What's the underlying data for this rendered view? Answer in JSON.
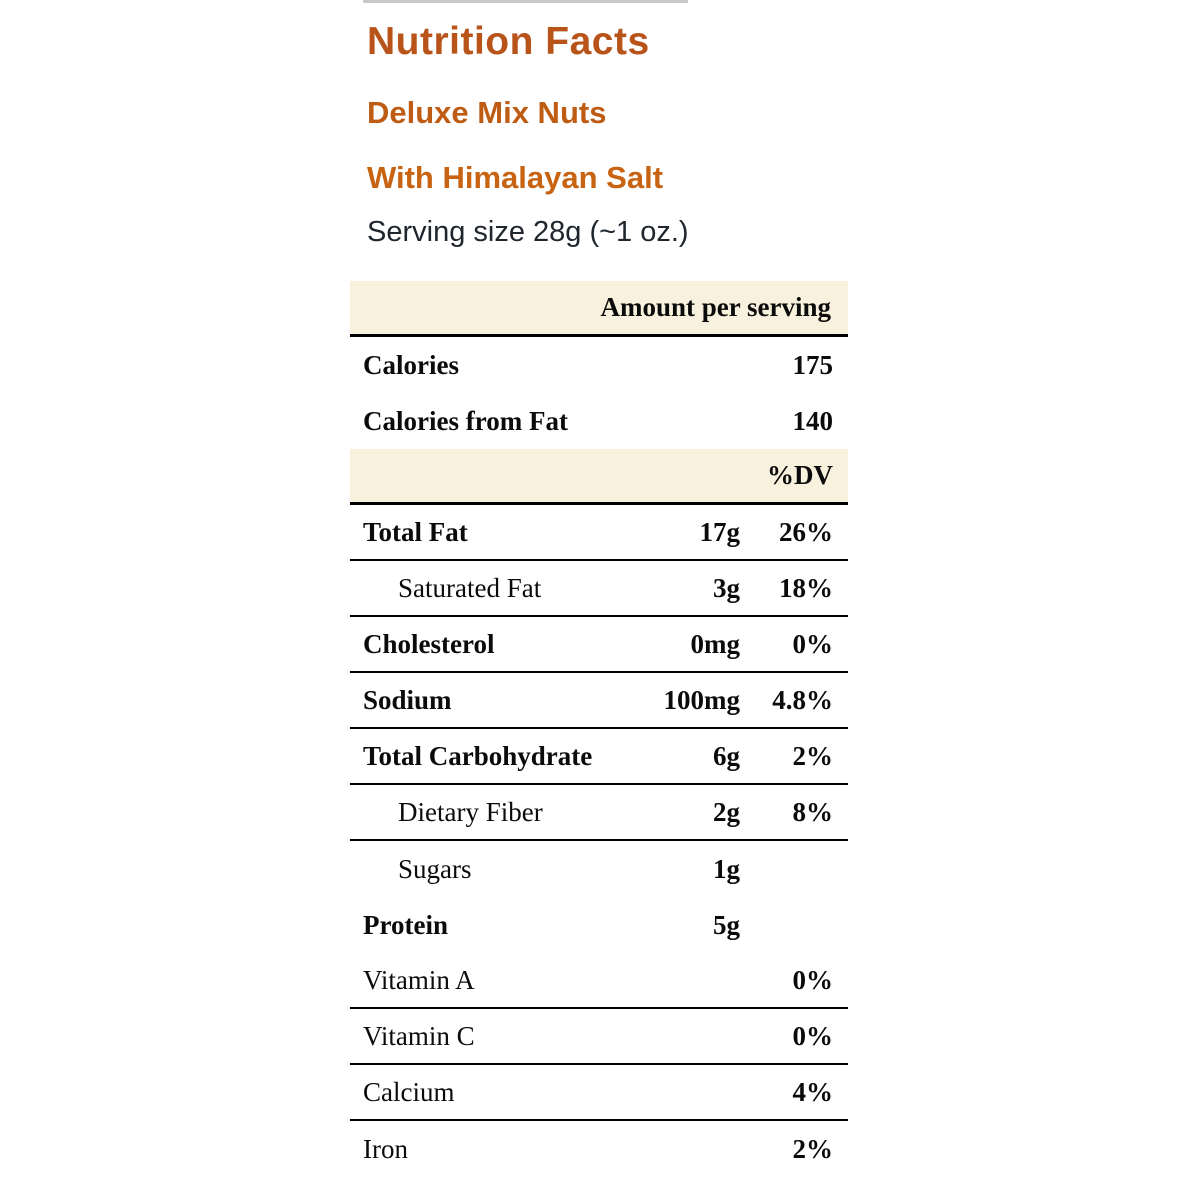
{
  "header": {
    "title": "Nutrition Facts",
    "product_name": "Deluxe Mix Nuts",
    "product_variant": "With Himalayan Salt",
    "serving_size": "Serving size 28g (~1 oz.)"
  },
  "colors": {
    "title_orange": "#b8541a",
    "subtitle_orange": "#c86312",
    "band_cream": "#f8f1dd",
    "serving_text": "#20262e",
    "rule_black": "#000000"
  },
  "table": {
    "amount_header": "Amount per serving",
    "dv_header": "%DV",
    "rows": [
      {
        "label": "Calories",
        "amount": "",
        "dv": "175"
      },
      {
        "label": "Calories from Fat",
        "amount": "",
        "dv": "140"
      },
      {
        "label": "Total Fat",
        "amount": "17g",
        "dv": "26%"
      },
      {
        "label": "Saturated Fat",
        "amount": "3g",
        "dv": "18%"
      },
      {
        "label": "Cholesterol",
        "amount": "0mg",
        "dv": "0%"
      },
      {
        "label": "Sodium",
        "amount": "100mg",
        "dv": "4.8%"
      },
      {
        "label": "Total Carbohydrate",
        "amount": "6g",
        "dv": "2%"
      },
      {
        "label": "Dietary Fiber",
        "amount": "2g",
        "dv": "8%"
      },
      {
        "label": "Sugars",
        "amount": "1g",
        "dv": ""
      },
      {
        "label": "Protein",
        "amount": "5g",
        "dv": ""
      },
      {
        "label": "Vitamin A",
        "amount": "",
        "dv": "0%"
      },
      {
        "label": "Vitamin C",
        "amount": "",
        "dv": "0%"
      },
      {
        "label": "Calcium",
        "amount": "",
        "dv": "4%"
      },
      {
        "label": "Iron",
        "amount": "",
        "dv": "2%"
      }
    ]
  }
}
